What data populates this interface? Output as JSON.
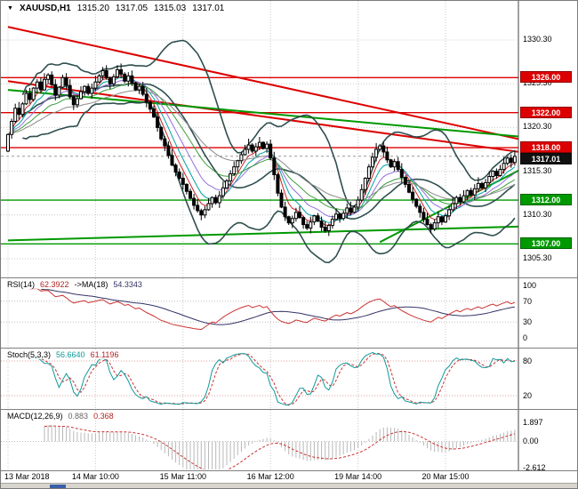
{
  "header": {
    "dropdown_icon": "▼",
    "symbol": "XAUUSD,H1",
    "open": "1315.20",
    "high": "1317.05",
    "low": "1315.03",
    "close": "1317.01"
  },
  "price_axis": {
    "labels": [
      {
        "text": "1330.30",
        "price": 1330.3
      },
      {
        "text": "1325.30",
        "price": 1325.3
      },
      {
        "text": "1320.30",
        "price": 1320.3
      },
      {
        "text": "1315.30",
        "price": 1315.3
      },
      {
        "text": "1310.30",
        "price": 1310.3
      },
      {
        "text": "1305.30",
        "price": 1305.3
      }
    ],
    "badges": [
      {
        "text": "1326.00",
        "price": 1326.0,
        "bg": "#dd0000",
        "kind": "resistance"
      },
      {
        "text": "1322.00",
        "price": 1322.0,
        "bg": "#dd0000",
        "kind": "resistance"
      },
      {
        "text": "1318.00",
        "price": 1318.0,
        "bg": "#dd0000",
        "kind": "resistance"
      },
      {
        "text": "1317.01",
        "price": 1317.01,
        "bg": "#111111",
        "kind": "current"
      },
      {
        "text": "1312.00",
        "price": 1312.0,
        "bg": "#009900",
        "kind": "support"
      },
      {
        "text": "1307.00",
        "price": 1307.0,
        "bg": "#009900",
        "kind": "support"
      }
    ]
  },
  "time_axis": {
    "labels": [
      {
        "text": "13 Mar 2018",
        "bar": 0
      },
      {
        "text": "14 Mar 10:00",
        "bar": 24
      },
      {
        "text": "15 Mar 11:00",
        "bar": 48
      },
      {
        "text": "16 Mar 12:00",
        "bar": 72
      },
      {
        "text": "19 Mar 14:00",
        "bar": 96
      },
      {
        "text": "20 Mar 15:00",
        "bar": 120
      }
    ]
  },
  "chart_data": {
    "type": "candlestick",
    "symbol": "XAUUSD",
    "timeframe": "H1",
    "title": "XAUUSD,H1 1315.20 1317.05 1315.03 1317.01",
    "ylim": [
      1303.5,
      1334.5
    ],
    "grid": true,
    "current_price": 1317.01,
    "first_open": 1317.6,
    "closes": [
      1319.5,
      1321.0,
      1322.5,
      1321.8,
      1323.0,
      1324.2,
      1323.5,
      1324.8,
      1325.5,
      1324.6,
      1325.8,
      1326.3,
      1325.2,
      1324.0,
      1324.9,
      1326.0,
      1325.1,
      1323.8,
      1322.9,
      1323.6,
      1324.4,
      1325.0,
      1324.2,
      1324.8,
      1325.5,
      1326.2,
      1326.8,
      1326.0,
      1325.3,
      1326.1,
      1326.9,
      1326.4,
      1325.6,
      1326.2,
      1325.4,
      1324.6,
      1325.0,
      1324.1,
      1323.2,
      1322.4,
      1321.5,
      1320.3,
      1319.0,
      1318.2,
      1317.1,
      1316.0,
      1315.2,
      1314.5,
      1313.8,
      1313.0,
      1312.2,
      1311.4,
      1310.8,
      1310.3,
      1310.9,
      1311.6,
      1312.3,
      1311.7,
      1312.5,
      1313.4,
      1314.2,
      1315.0,
      1315.8,
      1316.5,
      1317.2,
      1317.8,
      1318.3,
      1317.6,
      1318.1,
      1318.6,
      1317.9,
      1318.4,
      1316.8,
      1314.9,
      1312.8,
      1311.2,
      1310.1,
      1309.4,
      1309.9,
      1310.6,
      1310.0,
      1309.2,
      1308.8,
      1309.5,
      1310.2,
      1309.6,
      1308.9,
      1308.5,
      1309.1,
      1309.8,
      1310.4,
      1309.9,
      1310.5,
      1311.1,
      1310.6,
      1311.2,
      1312.0,
      1313.2,
      1314.5,
      1315.8,
      1316.9,
      1317.8,
      1318.2,
      1317.5,
      1316.6,
      1315.8,
      1316.4,
      1315.5,
      1314.6,
      1313.8,
      1312.9,
      1312.1,
      1311.3,
      1310.6,
      1309.8,
      1309.2,
      1308.7,
      1309.4,
      1310.1,
      1309.5,
      1310.2,
      1310.9,
      1311.6,
      1312.3,
      1311.8,
      1312.5,
      1313.1,
      1312.6,
      1313.3,
      1313.9,
      1313.4,
      1314.0,
      1314.7,
      1315.3,
      1314.8,
      1315.5,
      1316.2,
      1316.8,
      1316.3,
      1317.0
    ],
    "colors": {
      "grid": "#c9c9c9",
      "bull": "#ffffff",
      "bear": "#000000",
      "candle_outline": "#000000",
      "resistance": "#dd0000",
      "support": "#009900",
      "current_badge": "#111111",
      "axis_text": "#000000"
    },
    "overlays": {
      "bollinger": {
        "period": 20,
        "deviation": 2,
        "color": "#2F4F4F"
      },
      "moving_averages": [
        {
          "period": 5,
          "color": "#cc2222"
        },
        {
          "period": 8,
          "color": "#00a3a3"
        },
        {
          "period": 13,
          "color": "#9370DB"
        },
        {
          "period": 21,
          "color": "#3c9d3c"
        },
        {
          "period": 34,
          "color": "#8a8a8a"
        }
      ]
    },
    "hlines": [
      {
        "price": 1326.0,
        "color": "#dd0000"
      },
      {
        "price": 1322.0,
        "color": "#dd0000"
      },
      {
        "price": 1318.0,
        "color": "#dd0000"
      },
      {
        "price": 1312.0,
        "color": "#009900"
      },
      {
        "price": 1307.0,
        "color": "#009900"
      }
    ],
    "trendlines": [
      {
        "b1": 0,
        "p1": 1331.8,
        "b2": 142,
        "p2": 1318.8,
        "color": "#dd0000",
        "width": 2
      },
      {
        "b1": 0,
        "p1": 1325.6,
        "b2": 142,
        "p2": 1317.4,
        "color": "#dd0000",
        "width": 2
      },
      {
        "b1": 0,
        "p1": 1324.6,
        "b2": 142,
        "p2": 1319.2,
        "color": "#009900",
        "width": 2
      },
      {
        "b1": 102,
        "p1": 1307.2,
        "b2": 142,
        "p2": 1315.8,
        "color": "#009900",
        "width": 2
      },
      {
        "b1": 0,
        "p1": 1307.4,
        "b2": 142,
        "p2": 1309.0,
        "color": "#009900",
        "width": 2
      }
    ],
    "indicators": {
      "rsi": {
        "label": "RSI(14)",
        "value": "62.3922",
        "ma_label": "->MA(18)",
        "ma_value": "54.3343",
        "period": 14,
        "ma_period": 18,
        "levels": [
          70,
          30
        ],
        "scale": [
          {
            "text": "100",
            "v": 100
          },
          {
            "text": "70",
            "v": 70
          },
          {
            "text": "30",
            "v": 30
          },
          {
            "text": "0",
            "v": 0
          }
        ],
        "colors": {
          "main": "#cc3333",
          "ma": "#333366"
        }
      },
      "stoch": {
        "label": "Stoch(5,3,3)",
        "value_k": "56.6640",
        "value_d": "61.1196",
        "k_period": 5,
        "d_period": 3,
        "slowing": 3,
        "levels": [
          80,
          20
        ],
        "scale": [
          {
            "text": "80",
            "v": 80
          },
          {
            "text": "20",
            "v": 20
          }
        ],
        "colors": {
          "k": "#0f9a9a",
          "d": "#cc3333"
        }
      },
      "macd": {
        "label": "MACD(12,26,9)",
        "value_main": "0.883",
        "value_signal": "0.368",
        "fast": 12,
        "slow": 26,
        "signal": 9,
        "scale": [
          {
            "text": "1.897",
            "v": 1.897
          },
          {
            "text": "0.00",
            "v": 0
          },
          {
            "text": "-2.612",
            "v": -2.612
          }
        ],
        "colors": {
          "hist": "#b8b8b8",
          "signal": "#cc3333"
        }
      }
    }
  }
}
